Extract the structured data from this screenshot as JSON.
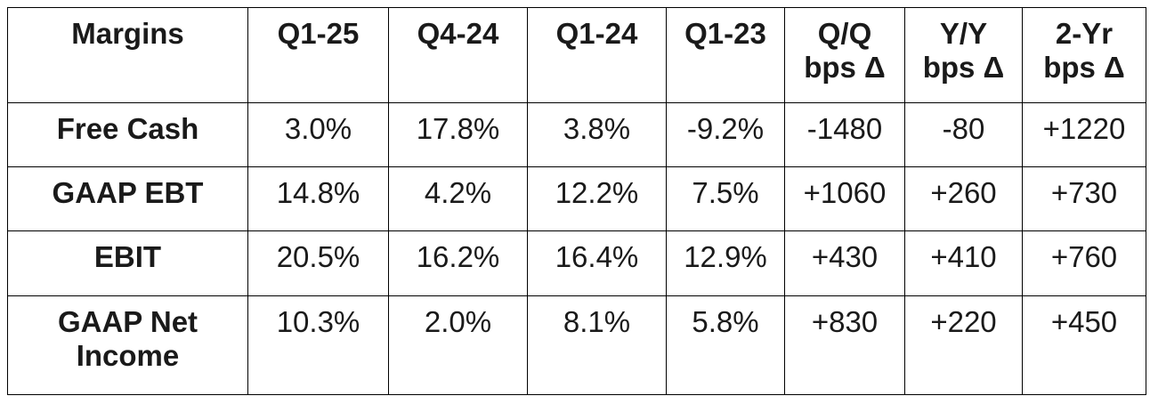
{
  "table": {
    "columns": [
      [
        "Margins"
      ],
      [
        "Q1-25"
      ],
      [
        "Q4-24"
      ],
      [
        "Q1-24"
      ],
      [
        "Q1-23"
      ],
      [
        "Q/Q",
        "bps Δ"
      ],
      [
        "Y/Y",
        "bps Δ"
      ],
      [
        "2-Yr",
        "bps Δ"
      ]
    ],
    "rows": [
      {
        "label": [
          "Free Cash"
        ],
        "values": [
          "3.0%",
          "17.8%",
          "3.8%",
          "-9.2%",
          "-1480",
          "-80",
          "+1220"
        ]
      },
      {
        "label": [
          "GAAP EBT"
        ],
        "values": [
          "14.8%",
          "4.2%",
          "12.2%",
          "7.5%",
          "+1060",
          "+260",
          "+730"
        ]
      },
      {
        "label": [
          "EBIT"
        ],
        "values": [
          "20.5%",
          "16.2%",
          "16.4%",
          "12.9%",
          "+430",
          "+410",
          "+760"
        ]
      },
      {
        "label": [
          "GAAP Net",
          "Income"
        ],
        "values": [
          "10.3%",
          "2.0%",
          "8.1%",
          "5.8%",
          "+830",
          "+220",
          "+450"
        ]
      }
    ]
  }
}
